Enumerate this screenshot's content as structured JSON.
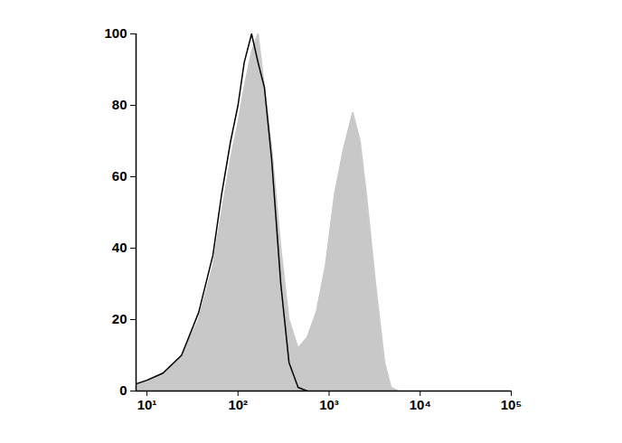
{
  "chart_data": {
    "type": "line",
    "log": "x",
    "xlim": [
      7.6,
      100000
    ],
    "xticks": [
      {
        "value": 10,
        "label": "10¹"
      },
      {
        "value": 100,
        "label": "10²"
      },
      {
        "value": 1000,
        "label": "10³"
      },
      {
        "value": 10000,
        "label": "10⁴"
      },
      {
        "value": 100000,
        "label": "10⁵"
      }
    ],
    "ylim": [
      0,
      100
    ],
    "yticks": [
      0,
      20,
      40,
      60,
      80,
      100
    ],
    "series": [
      {
        "type": "area",
        "color": "#c8c8c8",
        "x": [
          7.6,
          10,
          15,
          24,
          37,
          53,
          66,
          83,
          100,
          117,
          141,
          166,
          195,
          234,
          295,
          363,
          457,
          575,
          724,
          912,
          1148,
          1445,
          1820,
          2188,
          2570,
          3236,
          4074,
          4786,
          5754
        ],
        "values": [
          2,
          3,
          5,
          10,
          20,
          35,
          50,
          65,
          75,
          85,
          95,
          100,
          85,
          68,
          40,
          20,
          12,
          15,
          22,
          35,
          55,
          68,
          78,
          70,
          55,
          30,
          8,
          1,
          0
        ]
      },
      {
        "type": "line",
        "color": "#000000",
        "x": [
          7.6,
          10,
          15,
          24,
          37,
          53,
          66,
          83,
          100,
          117,
          141,
          166,
          195,
          234,
          295,
          363,
          457,
          575
        ],
        "values": [
          2,
          3,
          5,
          10,
          22,
          38,
          55,
          70,
          80,
          92,
          100,
          92,
          85,
          65,
          30,
          8,
          1,
          0
        ]
      }
    ]
  }
}
